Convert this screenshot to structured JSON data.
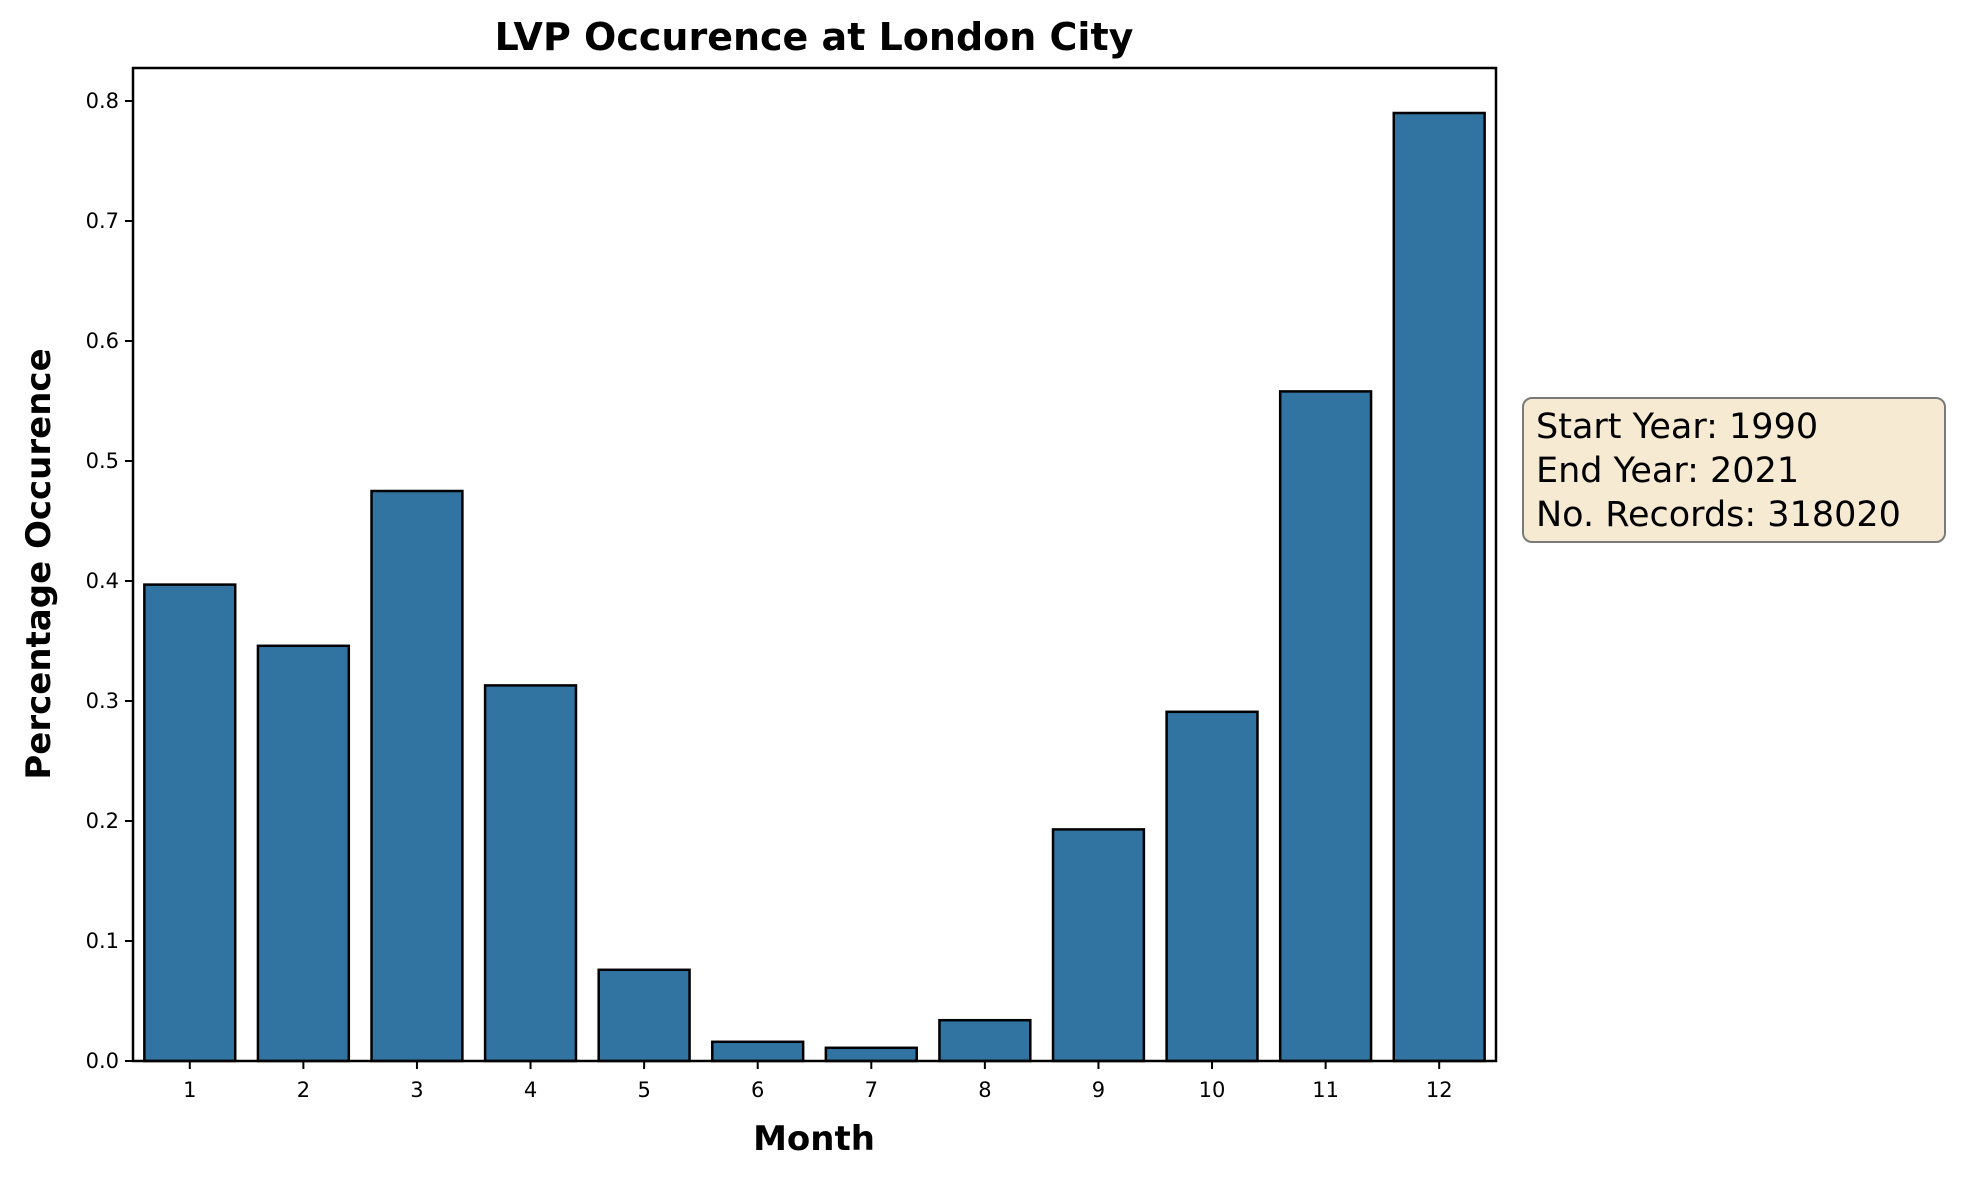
{
  "chart_data": {
    "type": "bar",
    "title": "LVP Occurence at London City",
    "xlabel": "Month",
    "ylabel": "Percentage Occurence",
    "categories": [
      "1",
      "2",
      "3",
      "4",
      "5",
      "6",
      "7",
      "8",
      "9",
      "10",
      "11",
      "12"
    ],
    "values": [
      0.397,
      0.346,
      0.475,
      0.313,
      0.076,
      0.016,
      0.011,
      0.034,
      0.193,
      0.291,
      0.558,
      0.79
    ],
    "ylim": [
      0,
      0.83
    ],
    "yticks": [
      "0.0",
      "0.1",
      "0.2",
      "0.3",
      "0.4",
      "0.5",
      "0.6",
      "0.7",
      "0.8"
    ],
    "grid": false,
    "bar_color": "#3274a1",
    "edge_color": "#000000"
  },
  "annotation": {
    "lines": [
      "Start Year: 1990",
      "End Year: 2021",
      "No. Records: 318020"
    ],
    "background": "#f6ead3"
  }
}
